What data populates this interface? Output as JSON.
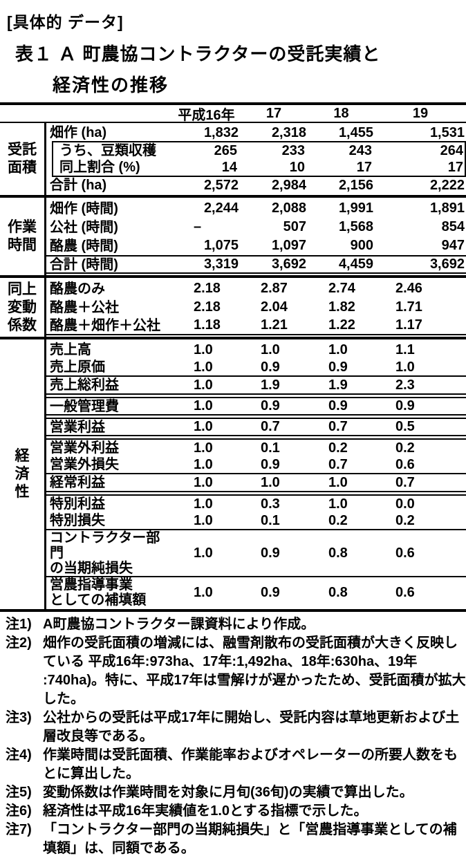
{
  "header": {
    "tag": "[具体的 データ]",
    "title1": "表１ Ａ 町農協コントラクターの受託実績と",
    "title2": "経済性の推移"
  },
  "table": {
    "years": [
      "平成16年",
      "17",
      "18",
      "19"
    ],
    "sections": [
      {
        "group": "受託\n面積",
        "rows": [
          {
            "label": "畑作 (ha)",
            "values": [
              "1,832",
              "2,318",
              "1,455",
              "1,531"
            ]
          },
          {
            "label": "うち、豆類収穫",
            "values": [
              "265",
              "233",
              "243",
              "264"
            ],
            "sub": true
          },
          {
            "label": "同上割合 (%)",
            "values": [
              "14",
              "10",
              "17",
              "17"
            ],
            "sub": true
          },
          {
            "label": "合計 (ha)",
            "values": [
              "2,572",
              "2,984",
              "2,156",
              "2,222"
            ]
          }
        ]
      },
      {
        "group": "作業\n時間",
        "rows": [
          {
            "label": "畑作 (時間)",
            "values": [
              "2,244",
              "2,088",
              "1,991",
              "1,891"
            ]
          },
          {
            "label": "公社 (時間)",
            "values": [
              "–",
              "507",
              "1,568",
              "854"
            ]
          },
          {
            "label": "酪農 (時間)",
            "values": [
              "1,075",
              "1,097",
              "900",
              "947"
            ]
          },
          {
            "label": "合計 (時間)",
            "values": [
              "3,319",
              "3,692",
              "4,459",
              "3,692"
            ],
            "cls": "bt bb"
          }
        ]
      },
      {
        "group": "同上\n変動\n係数",
        "dec": true,
        "rows": [
          {
            "label": "酪農のみ",
            "values": [
              "2.18",
              "2.87",
              "2.74",
              "2.46"
            ]
          },
          {
            "label": "酪農＋公社",
            "values": [
              "2.18",
              "2.04",
              "1.82",
              "1.71"
            ]
          },
          {
            "label": "酪農＋畑作＋公社",
            "values": [
              "1.18",
              "1.21",
              "1.22",
              "1.17"
            ],
            "cls": "bb"
          }
        ]
      },
      {
        "group": "経\n済\n性",
        "dec": true,
        "rows": [
          {
            "label": "売上高",
            "values": [
              "1.0",
              "1.0",
              "1.0",
              "1.1"
            ]
          },
          {
            "label": "売上原価",
            "values": [
              "1.0",
              "0.9",
              "0.9",
              "1.0"
            ],
            "cls": "bb"
          },
          {
            "label": "売上総利益",
            "values": [
              "1.0",
              "1.9",
              "1.9",
              "2.3"
            ],
            "cls": "bb"
          },
          {
            "label": "一般管理費",
            "values": [
              "1.0",
              "0.9",
              "0.9",
              "0.9"
            ],
            "cls": "bt gap bb"
          },
          {
            "label": "営業利益",
            "values": [
              "1.0",
              "0.7",
              "0.7",
              "0.5"
            ],
            "cls": "bt gap bb"
          },
          {
            "label": "営業外利益",
            "values": [
              "1.0",
              "0.1",
              "0.2",
              "0.2"
            ],
            "cls": "bt gap"
          },
          {
            "label": "営業外損失",
            "values": [
              "1.0",
              "0.9",
              "0.7",
              "0.6"
            ],
            "cls": "bb"
          },
          {
            "label": "経常利益",
            "values": [
              "1.0",
              "1.0",
              "1.0",
              "0.7"
            ],
            "cls": "bb"
          },
          {
            "label": "特別利益",
            "values": [
              "1.0",
              "0.3",
              "1.0",
              "0.0"
            ],
            "cls": "bt gap"
          },
          {
            "label": "特別損失",
            "values": [
              "1.0",
              "0.1",
              "0.2",
              "0.2"
            ],
            "cls": "bb"
          },
          {
            "label": "コントラクター部門\nの当期純損失",
            "values": [
              "1.0",
              "0.9",
              "0.8",
              "0.6"
            ],
            "cls": "bb tall"
          },
          {
            "label": "営農指導事業\nとしての補填額",
            "values": [
              "1.0",
              "0.9",
              "0.8",
              "0.6"
            ],
            "cls": "tall"
          }
        ]
      }
    ]
  },
  "notes": [
    {
      "num": "注1)",
      "text": "A町農協コントラクター課資料により作成。"
    },
    {
      "num": "注2)",
      "text": "畑作の受託面積の増減には、融雪剤散布の受託面積が大きく反映している 平成16年:973ha、17年:1,492ha、18年:630ha、19年 :740ha)。特に、平成17年は雪解けが遅かったため、受託面積が拡大した。"
    },
    {
      "num": "注3)",
      "text": "公社からの受託は平成17年に開始し、受託内容は草地更新および土層改良等である。"
    },
    {
      "num": "注4)",
      "text": "作業時間は受託面積、作業能率およびオペレーターの所要人数をもとに算出した。"
    },
    {
      "num": "注5)",
      "text": "変動係数は作業時間を対象に月旬(36旬)の実績で算出した。"
    },
    {
      "num": "注6)",
      "text": "経済性は平成16年実績値を1.0とする指標で示した。"
    },
    {
      "num": "注7)",
      "text": "「コントラクター部門の当期純損失」と「営農指導事業としての補填額」は、同額である。"
    }
  ]
}
